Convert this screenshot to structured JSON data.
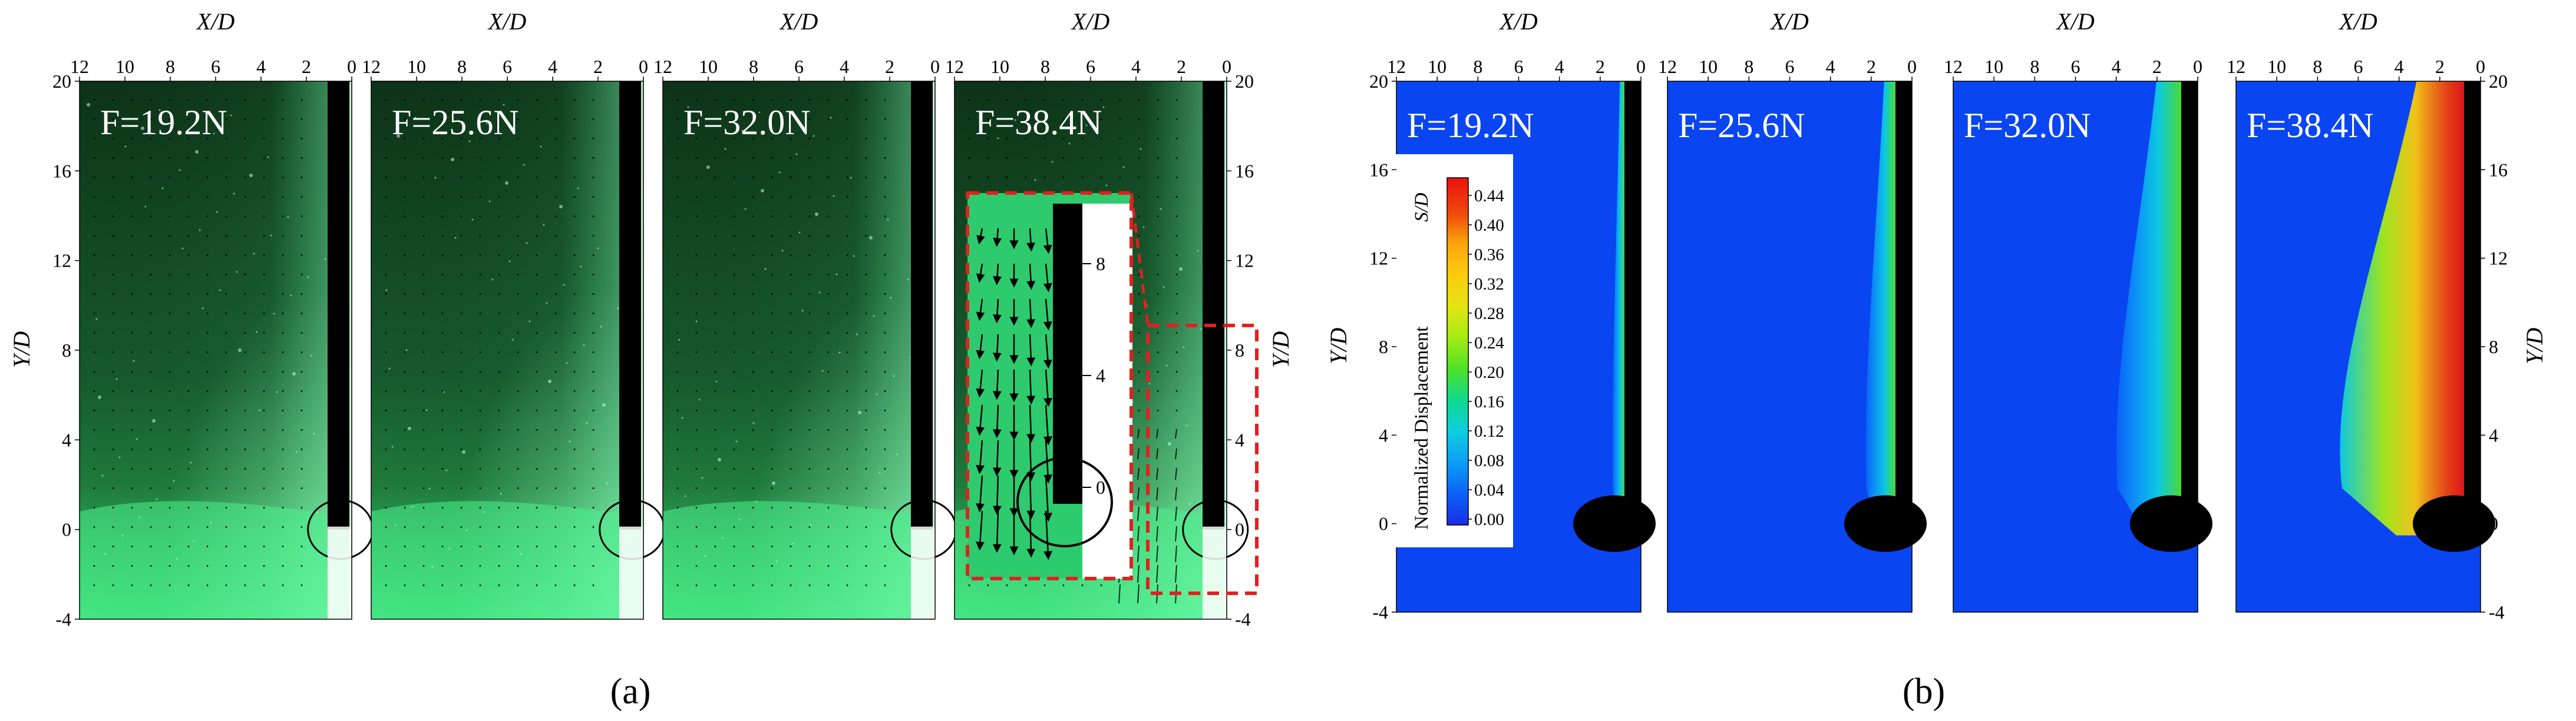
{
  "subfigure_labels": [
    "(a)",
    "(b)"
  ],
  "panel_labels": [
    "F=19.2N",
    "F=25.6N",
    "F=32.0N",
    "F=38.4N"
  ],
  "x_axis": {
    "label": "X/D",
    "ticks": [
      "12",
      "10",
      "8",
      "6",
      "4",
      "2",
      "0"
    ]
  },
  "y_axis": {
    "label": "Y/D",
    "ticks": [
      "20",
      "16",
      "12",
      "8",
      "4",
      "0",
      "-4"
    ]
  },
  "inset_ticks": [
    "8",
    "4",
    "0"
  ],
  "colorbar": {
    "title": "Normalized Displacement",
    "symbol": "S/D",
    "ticks": [
      "0.44",
      "0.40",
      "0.36",
      "0.32",
      "0.28",
      "0.24",
      "0.20",
      "0.16",
      "0.12",
      "0.08",
      "0.04",
      "0.00"
    ],
    "colors": [
      "#e8130f",
      "#f0460c",
      "#f5780c",
      "#f9a60c",
      "#fbcb0e",
      "#e4e412",
      "#a5ec14",
      "#4ee226",
      "#0fd98e",
      "#0dcfe0",
      "#0c9ef5",
      "#0b62f6",
      "#1b2dea"
    ]
  },
  "colors": {
    "piv_dark": "#0d3318",
    "piv_bright": "#33e878",
    "contour_base": "#0a45f2",
    "dashed_box": "#e1201f"
  }
}
